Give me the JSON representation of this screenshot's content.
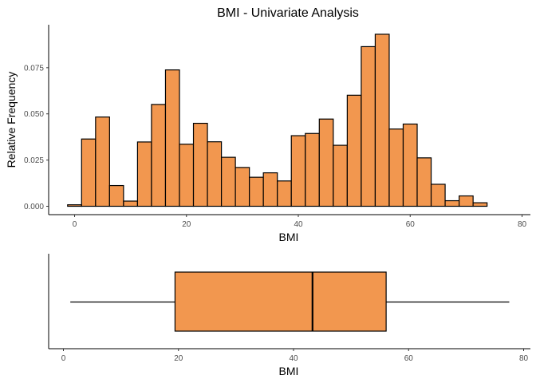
{
  "colors": {
    "fill": "#f2974f",
    "stroke": "#000000"
  },
  "chart_data": [
    {
      "type": "bar",
      "title": "BMI - Univariate Analysis",
      "xlabel": "BMI",
      "ylabel": "Relative Frequency",
      "xlim": [
        -2,
        80
      ],
      "ylim": [
        0,
        0.0935
      ],
      "x_ticks": [
        0,
        20,
        40,
        60,
        80
      ],
      "y_ticks": [
        0.0,
        0.025,
        0.05,
        0.075
      ],
      "y_tick_labels": [
        "0.000",
        "0.025",
        "0.050",
        "0.075"
      ],
      "grid": false,
      "bin_width": 2.5,
      "bin_start": -1.25,
      "values": [
        0.0008,
        0.0364,
        0.0483,
        0.0112,
        0.0028,
        0.0348,
        0.0551,
        0.0738,
        0.0336,
        0.0449,
        0.0349,
        0.0265,
        0.021,
        0.0157,
        0.0181,
        0.0137,
        0.0382,
        0.0394,
        0.0472,
        0.033,
        0.0601,
        0.0864,
        0.0931,
        0.0418,
        0.0445,
        0.0262,
        0.0119,
        0.003,
        0.0056,
        0.0019
      ]
    },
    {
      "type": "box",
      "xlabel": "BMI",
      "xlim": [
        -2,
        80
      ],
      "x_ticks": [
        0,
        20,
        40,
        60,
        80
      ],
      "whisker_low": 1.2,
      "q1": 19.4,
      "median": 43.3,
      "q3": 56.1,
      "whisker_high": 77.5
    }
  ]
}
